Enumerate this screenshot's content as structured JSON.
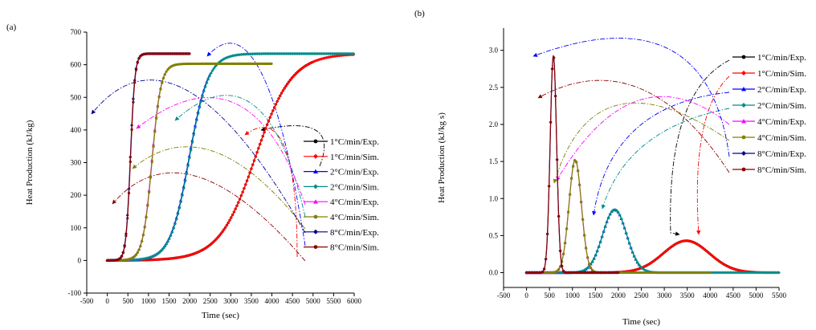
{
  "chart_data": [
    {
      "panel_label": "(a)",
      "type": "line",
      "xlabel": "Time (sec)",
      "ylabel": "Heat Production (kJ/kg)",
      "xlim": [
        -500,
        6000
      ],
      "ylim": [
        -100,
        700
      ],
      "xticks": [
        -500,
        0,
        500,
        1000,
        1500,
        2000,
        2500,
        3000,
        3500,
        4000,
        4500,
        5000,
        5500,
        6000
      ],
      "yticks": [
        -100,
        0,
        100,
        200,
        300,
        400,
        500,
        600,
        700
      ],
      "grid": false,
      "legend_position": "right",
      "series": [
        {
          "name": "1°C/min/Exp.",
          "color": "#000000",
          "marker": "circle",
          "model": "sigmoid",
          "params": {
            "t0": 3600,
            "w": 440,
            "max": 634,
            "start": 0,
            "end": 5000
          }
        },
        {
          "name": "1°C/min/Sim.",
          "color": "#ff0000",
          "marker": "diamond",
          "model": "sigmoid",
          "params": {
            "t0": 3600,
            "w": 440,
            "max": 634,
            "start": 0,
            "end": 6000
          }
        },
        {
          "name": "2°C/min/Exp.",
          "color": "#0000ff",
          "marker": "triangle",
          "model": "sigmoid",
          "params": {
            "t0": 1990,
            "w": 230,
            "max": 634,
            "start": 0,
            "end": 2500
          }
        },
        {
          "name": "2°C/min/Sim.",
          "color": "#008b8b",
          "marker": "diamond",
          "model": "sigmoid",
          "params": {
            "t0": 2000,
            "w": 230,
            "max": 634,
            "start": 0,
            "end": 6000
          }
        },
        {
          "name": "4°C/min/Exp.",
          "color": "#ff00ff",
          "marker": "triangle",
          "model": "sigmoid",
          "params": {
            "t0": 1080,
            "w": 110,
            "max": 603,
            "start": 0,
            "end": 1400
          }
        },
        {
          "name": "4°C/min/Sim.",
          "color": "#808000",
          "marker": "circle",
          "model": "sigmoid",
          "params": {
            "t0": 1085,
            "w": 110,
            "max": 603,
            "start": 0,
            "end": 4000
          }
        },
        {
          "name": "8°C/min/Exp.",
          "color": "#00008b",
          "marker": "diamond",
          "model": "sigmoid",
          "params": {
            "t0": 560,
            "w": 55,
            "max": 634,
            "start": 0,
            "end": 2000
          }
        },
        {
          "name": "8°C/min/Sim.",
          "color": "#8b0000",
          "marker": "circle",
          "model": "sigmoid",
          "params": {
            "t0": 565,
            "w": 55,
            "max": 634,
            "start": 0,
            "end": 2000
          }
        }
      ]
    },
    {
      "panel_label": "(b)",
      "type": "line",
      "xlabel": "Time (sec)",
      "ylabel": "Heat Production (kJ/kg s)",
      "xlim": [
        -500,
        5500
      ],
      "ylim": [
        -0.2,
        3.3
      ],
      "xticks": [
        -500,
        0,
        500,
        1000,
        1500,
        2000,
        2500,
        3000,
        3500,
        4000,
        4500,
        5000,
        5500
      ],
      "yticks": [
        0.0,
        0.5,
        1.0,
        1.5,
        2.0,
        2.5,
        3.0
      ],
      "grid": false,
      "legend_position": "top-right",
      "series": [
        {
          "name": "1°C/min/Exp.",
          "color": "#000000",
          "marker": "circle",
          "model": "gaussian",
          "params": {
            "t0": 3480,
            "s": 500,
            "peak": 0.43,
            "start": 0,
            "end": 5000
          }
        },
        {
          "name": "1°C/min/Sim.",
          "color": "#ff0000",
          "marker": "diamond",
          "model": "gaussian",
          "params": {
            "t0": 3480,
            "s": 500,
            "peak": 0.43,
            "start": 0,
            "end": 5500
          }
        },
        {
          "name": "2°C/min/Exp.",
          "color": "#0000ff",
          "marker": "triangle",
          "model": "gaussian",
          "params": {
            "t0": 1920,
            "s": 260,
            "peak": 0.85,
            "start": 0,
            "end": 2500
          }
        },
        {
          "name": "2°C/min/Sim.",
          "color": "#008b8b",
          "marker": "diamond",
          "model": "gaussian",
          "params": {
            "t0": 1920,
            "s": 260,
            "peak": 0.85,
            "start": 0,
            "end": 5500
          }
        },
        {
          "name": "4°C/min/Exp.",
          "color": "#ff00ff",
          "marker": "triangle",
          "model": "gaussian",
          "params": {
            "t0": 1060,
            "s": 135,
            "peak": 1.52,
            "start": 0,
            "end": 1500
          }
        },
        {
          "name": "4°C/min/Sim.",
          "color": "#808000",
          "marker": "circle",
          "model": "gaussian",
          "params": {
            "t0": 1060,
            "s": 135,
            "peak": 1.52,
            "start": 0,
            "end": 4000
          }
        },
        {
          "name": "8°C/min/Exp.",
          "color": "#00008b",
          "marker": "diamond",
          "model": "gaussian",
          "params": {
            "t0": 585,
            "s": 70,
            "peak": 2.93,
            "start": 0,
            "end": 2000
          }
        },
        {
          "name": "8°C/min/Sim.",
          "color": "#8b0000",
          "marker": "circle",
          "model": "gaussian",
          "params": {
            "t0": 585,
            "s": 70,
            "peak": 2.93,
            "start": 0,
            "end": 2000
          }
        }
      ]
    }
  ]
}
